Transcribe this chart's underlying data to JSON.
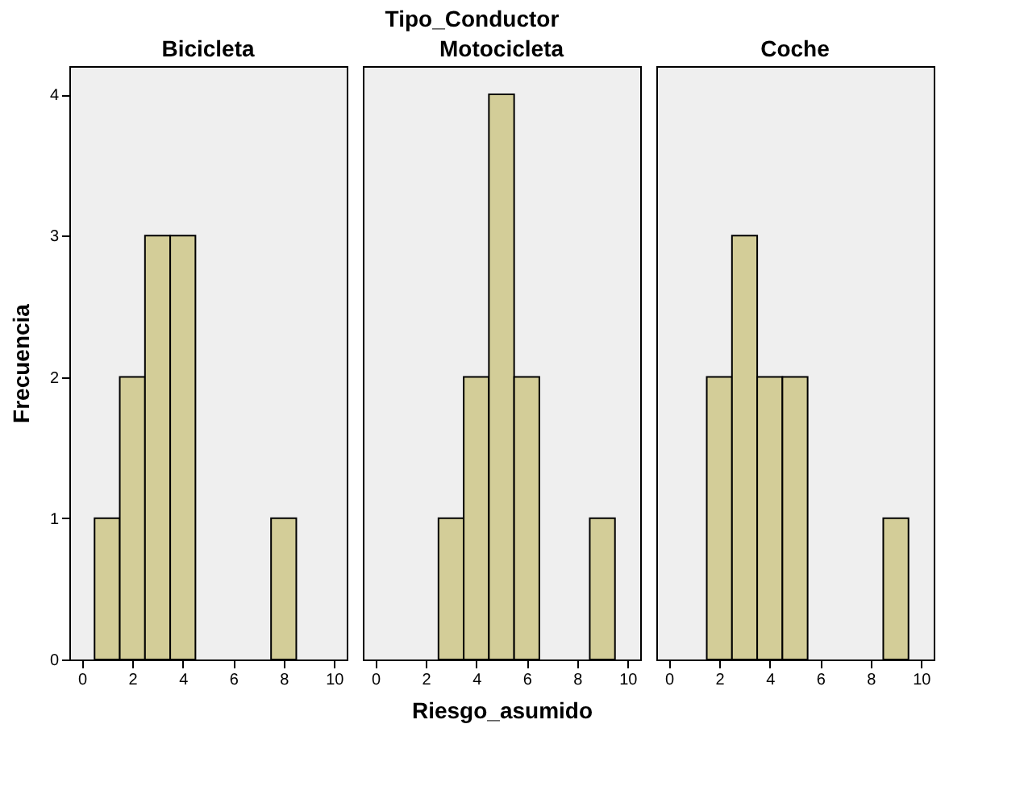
{
  "chart_data": [
    {
      "type": "histogram",
      "title": "Bicicleta",
      "ylabel": "Frecuencia",
      "annotations": [
        "Tipo_Conductor"
      ],
      "color": "#d3cd98",
      "bins": [
        0.5,
        1.5,
        2.5,
        3.5,
        4.5,
        5.5,
        6.5,
        7.5,
        8.5
      ],
      "values": [
        1,
        2,
        3,
        3,
        0,
        0,
        0,
        1
      ],
      "xlim": [
        -0.5,
        10.5
      ],
      "xticks": [
        0,
        2,
        4,
        6,
        8,
        10
      ],
      "ylim": [
        0,
        4.2
      ],
      "yticks": [
        0,
        1,
        2,
        3,
        4
      ]
    },
    {
      "type": "histogram",
      "title": "Motocicleta",
      "xlabel": "Riesgo_asumido",
      "color": "#d3cd98",
      "bins": [
        2.5,
        3.5,
        4.5,
        5.5,
        6.5,
        7.5,
        8.5,
        9.5
      ],
      "values": [
        1,
        2,
        4,
        2,
        0,
        0,
        1
      ],
      "xlim": [
        -0.5,
        10.5
      ],
      "xticks": [
        0,
        2,
        4,
        6,
        8,
        10
      ],
      "ylim": [
        0,
        4.2
      ],
      "yticks": [
        0,
        1,
        2,
        3,
        4
      ],
      "tick_labels": "x"
    },
    {
      "type": "histogram",
      "title": "Coche",
      "color": "#d3cd98",
      "bins": [
        1.5,
        2.5,
        3.5,
        4.5,
        5.5,
        6.5,
        7.5,
        8.5,
        9.5
      ],
      "values": [
        2,
        3,
        2,
        2,
        0,
        0,
        0,
        1
      ],
      "xlim": [
        -0.5,
        10.5
      ],
      "xticks": [
        0,
        2,
        4,
        6,
        8,
        10
      ],
      "ylim": [
        0,
        4.2
      ],
      "yticks": [
        0,
        1,
        2,
        3,
        4
      ],
      "tick_labels": "x"
    }
  ]
}
